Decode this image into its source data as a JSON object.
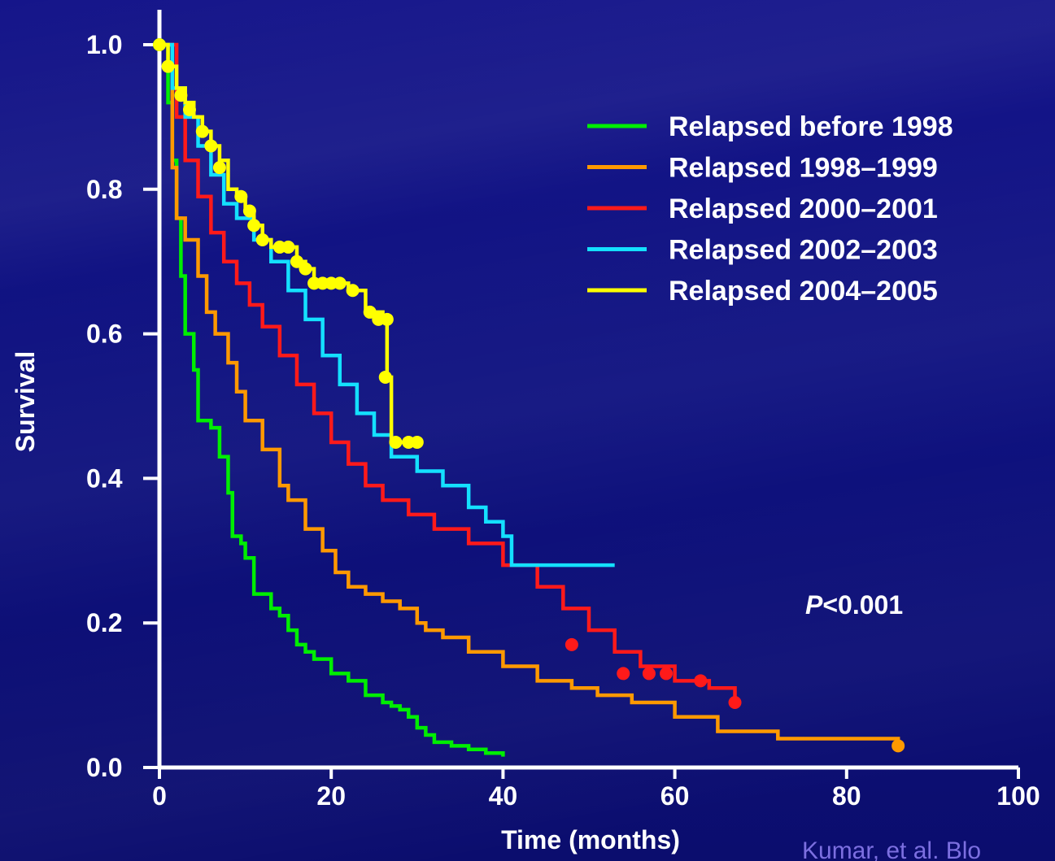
{
  "chart_data": {
    "type": "line",
    "step": true,
    "xlabel": "Time (months)",
    "ylabel": "Survival",
    "xlim": [
      0,
      100
    ],
    "ylim": [
      0,
      1
    ],
    "x_ticks": [
      "0",
      "20",
      "40",
      "60",
      "80",
      "100"
    ],
    "y_ticks": [
      "0.0",
      "0.2",
      "0.4",
      "0.6",
      "0.8",
      "1.0"
    ],
    "grid": false,
    "legend_position": "top-right",
    "annotation": {
      "italic": "P",
      "rest": "<0.001"
    },
    "citation": "Kumar, et al. Blo",
    "series": [
      {
        "name": "Relapsed before 1998",
        "color": "#00ee00",
        "points": [
          [
            0,
            1.0
          ],
          [
            1,
            0.92
          ],
          [
            1.5,
            0.84
          ],
          [
            2,
            0.76
          ],
          [
            2.5,
            0.68
          ],
          [
            3,
            0.6
          ],
          [
            4,
            0.55
          ],
          [
            4.5,
            0.48
          ],
          [
            6,
            0.47
          ],
          [
            7,
            0.43
          ],
          [
            8,
            0.38
          ],
          [
            8.5,
            0.32
          ],
          [
            9.5,
            0.31
          ],
          [
            10,
            0.29
          ],
          [
            11,
            0.24
          ],
          [
            13,
            0.22
          ],
          [
            14,
            0.21
          ],
          [
            15,
            0.19
          ],
          [
            16,
            0.17
          ],
          [
            17,
            0.16
          ],
          [
            18,
            0.15
          ],
          [
            20,
            0.13
          ],
          [
            22,
            0.12
          ],
          [
            24,
            0.1
          ],
          [
            26,
            0.09
          ],
          [
            27,
            0.085
          ],
          [
            28,
            0.08
          ],
          [
            29,
            0.07
          ],
          [
            30,
            0.055
          ],
          [
            31,
            0.045
          ],
          [
            32,
            0.035
          ],
          [
            34,
            0.03
          ],
          [
            36,
            0.025
          ],
          [
            38,
            0.02
          ],
          [
            40,
            0.015
          ]
        ],
        "censored": [
          [
            0,
            1.0
          ]
        ]
      },
      {
        "name": "Relapsed 1998–1999",
        "color": "#ff9900",
        "points": [
          [
            0,
            1.0
          ],
          [
            1.5,
            0.83
          ],
          [
            2,
            0.76
          ],
          [
            3,
            0.73
          ],
          [
            4.5,
            0.68
          ],
          [
            5.5,
            0.63
          ],
          [
            6.5,
            0.6
          ],
          [
            8,
            0.56
          ],
          [
            9,
            0.52
          ],
          [
            10,
            0.48
          ],
          [
            12,
            0.44
          ],
          [
            14,
            0.39
          ],
          [
            15,
            0.37
          ],
          [
            17,
            0.33
          ],
          [
            19,
            0.3
          ],
          [
            20.5,
            0.27
          ],
          [
            22,
            0.25
          ],
          [
            24,
            0.24
          ],
          [
            26,
            0.23
          ],
          [
            28,
            0.22
          ],
          [
            30,
            0.2
          ],
          [
            31,
            0.19
          ],
          [
            33,
            0.18
          ],
          [
            36,
            0.16
          ],
          [
            40,
            0.14
          ],
          [
            44,
            0.12
          ],
          [
            48,
            0.11
          ],
          [
            51,
            0.1
          ],
          [
            55,
            0.09
          ],
          [
            60,
            0.07
          ],
          [
            65,
            0.05
          ],
          [
            72,
            0.04
          ],
          [
            86,
            0.03
          ]
        ],
        "censored": [
          [
            86,
            0.03
          ]
        ]
      },
      {
        "name": "Relapsed 2000–2001",
        "color": "#ff1a1a",
        "points": [
          [
            0,
            1.0
          ],
          [
            2,
            0.9
          ],
          [
            3,
            0.84
          ],
          [
            4.5,
            0.79
          ],
          [
            6,
            0.74
          ],
          [
            7.5,
            0.7
          ],
          [
            9,
            0.67
          ],
          [
            10.5,
            0.64
          ],
          [
            12,
            0.61
          ],
          [
            14,
            0.57
          ],
          [
            16,
            0.53
          ],
          [
            18,
            0.49
          ],
          [
            20,
            0.45
          ],
          [
            22,
            0.42
          ],
          [
            24,
            0.39
          ],
          [
            26,
            0.37
          ],
          [
            29,
            0.35
          ],
          [
            32,
            0.33
          ],
          [
            36,
            0.31
          ],
          [
            40,
            0.28
          ],
          [
            44,
            0.25
          ],
          [
            47,
            0.22
          ],
          [
            50,
            0.19
          ],
          [
            53,
            0.16
          ],
          [
            56,
            0.14
          ],
          [
            60,
            0.12
          ],
          [
            64,
            0.11
          ],
          [
            67,
            0.09
          ]
        ],
        "censored": [
          [
            48,
            0.17
          ],
          [
            54,
            0.13
          ],
          [
            57,
            0.13
          ],
          [
            59,
            0.13
          ],
          [
            63,
            0.12
          ],
          [
            67,
            0.09
          ]
        ]
      },
      {
        "name": "Relapsed 2002–2003",
        "color": "#14e0ff",
        "points": [
          [
            0,
            1.0
          ],
          [
            1.5,
            0.94
          ],
          [
            3,
            0.9
          ],
          [
            4.5,
            0.86
          ],
          [
            6,
            0.82
          ],
          [
            7.5,
            0.78
          ],
          [
            9,
            0.76
          ],
          [
            11,
            0.73
          ],
          [
            13,
            0.7
          ],
          [
            15,
            0.66
          ],
          [
            17,
            0.62
          ],
          [
            19,
            0.57
          ],
          [
            21,
            0.53
          ],
          [
            23,
            0.49
          ],
          [
            25,
            0.46
          ],
          [
            27,
            0.43
          ],
          [
            30,
            0.41
          ],
          [
            33,
            0.39
          ],
          [
            36,
            0.36
          ],
          [
            38,
            0.34
          ],
          [
            40,
            0.32
          ],
          [
            41,
            0.28
          ],
          [
            53,
            0.28
          ]
        ],
        "censored": []
      },
      {
        "name": "Relapsed 2004–2005",
        "color": "#ffff00",
        "points": [
          [
            0,
            1.0
          ],
          [
            1,
            0.97
          ],
          [
            2,
            0.94
          ],
          [
            3,
            0.92
          ],
          [
            4,
            0.9
          ],
          [
            5,
            0.88
          ],
          [
            6,
            0.86
          ],
          [
            7,
            0.84
          ],
          [
            8,
            0.8
          ],
          [
            9,
            0.79
          ],
          [
            10,
            0.77
          ],
          [
            11,
            0.75
          ],
          [
            12,
            0.73
          ],
          [
            13,
            0.72
          ],
          [
            15,
            0.72
          ],
          [
            16,
            0.7
          ],
          [
            17,
            0.69
          ],
          [
            18,
            0.67
          ],
          [
            20,
            0.67
          ],
          [
            22,
            0.66
          ],
          [
            23.5,
            0.66
          ],
          [
            24,
            0.63
          ],
          [
            26,
            0.62
          ],
          [
            26.5,
            0.54
          ],
          [
            27,
            0.45
          ],
          [
            30,
            0.45
          ]
        ],
        "censored": [
          [
            0,
            1.0
          ],
          [
            1,
            0.97
          ],
          [
            2.5,
            0.93
          ],
          [
            3.5,
            0.91
          ],
          [
            5,
            0.88
          ],
          [
            6,
            0.86
          ],
          [
            7,
            0.83
          ],
          [
            9.5,
            0.79
          ],
          [
            10.5,
            0.77
          ],
          [
            11,
            0.75
          ],
          [
            12,
            0.73
          ],
          [
            14,
            0.72
          ],
          [
            15,
            0.72
          ],
          [
            16,
            0.7
          ],
          [
            17,
            0.69
          ],
          [
            18,
            0.67
          ],
          [
            19,
            0.67
          ],
          [
            20,
            0.67
          ],
          [
            21,
            0.67
          ],
          [
            22.5,
            0.66
          ],
          [
            24.5,
            0.63
          ],
          [
            25.5,
            0.62
          ],
          [
            26.5,
            0.62
          ],
          [
            26.3,
            0.54
          ],
          [
            27.5,
            0.45
          ],
          [
            29,
            0.45
          ],
          [
            30,
            0.45
          ]
        ]
      }
    ]
  }
}
